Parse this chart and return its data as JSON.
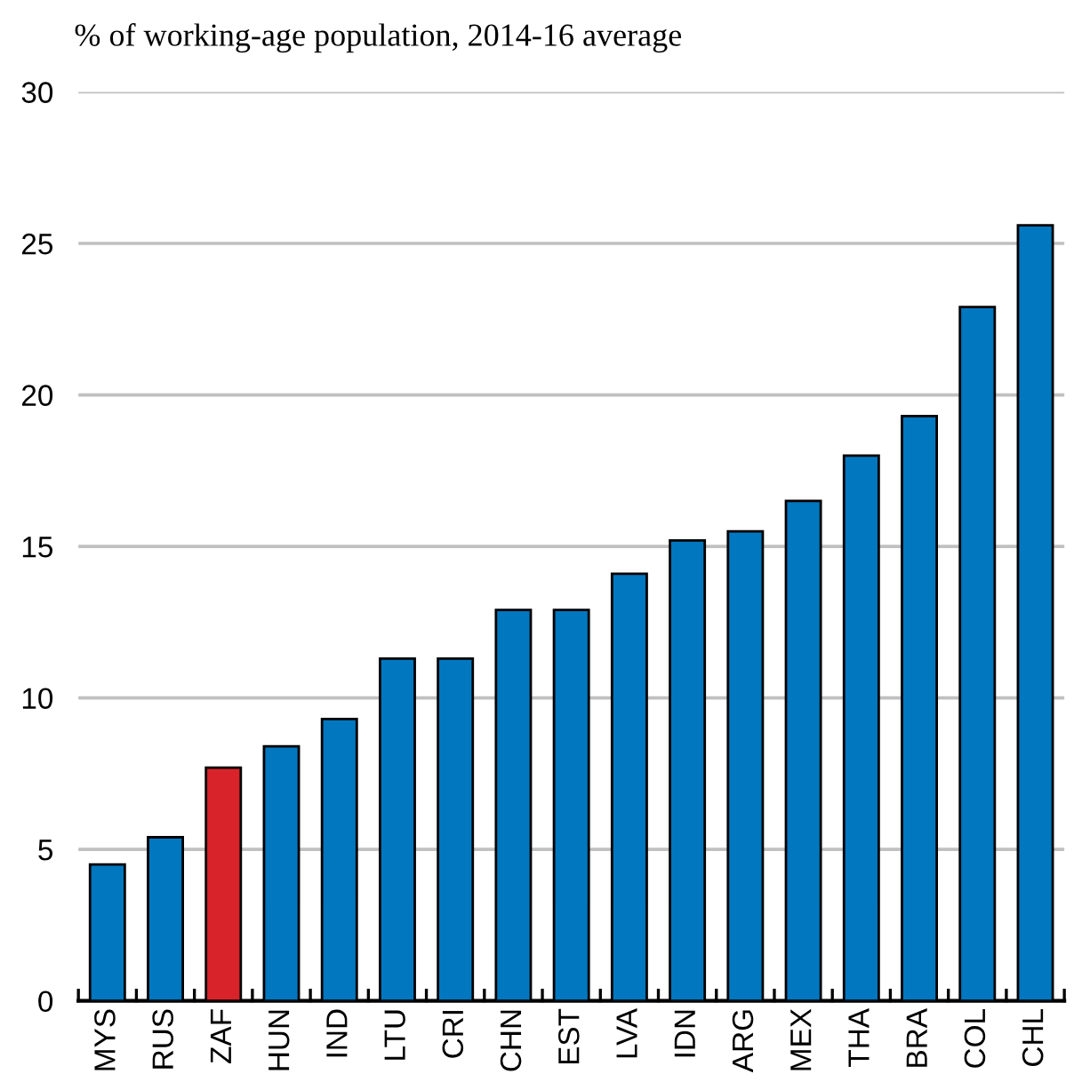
{
  "chart_data": {
    "type": "bar",
    "title": "% of working-age population, 2014-16 average",
    "categories": [
      "MYS",
      "RUS",
      "ZAF",
      "HUN",
      "IND",
      "LTU",
      "CRI",
      "CHN",
      "EST",
      "LVA",
      "IDN",
      "ARG",
      "MEX",
      "THA",
      "BRA",
      "COL",
      "CHL"
    ],
    "values": [
      4.5,
      5.4,
      7.7,
      8.4,
      9.3,
      11.3,
      11.3,
      12.9,
      12.9,
      14.1,
      15.2,
      15.5,
      16.5,
      18.0,
      19.3,
      22.9,
      25.6
    ],
    "colors": [
      "#0077bf",
      "#0077bf",
      "#d9232a",
      "#0077bf",
      "#0077bf",
      "#0077bf",
      "#0077bf",
      "#0077bf",
      "#0077bf",
      "#0077bf",
      "#0077bf",
      "#0077bf",
      "#0077bf",
      "#0077bf",
      "#0077bf",
      "#0077bf",
      "#0077bf"
    ],
    "ylim": [
      0,
      30
    ],
    "yticks": [
      0,
      5,
      10,
      15,
      20,
      25,
      30
    ],
    "grid": "y"
  }
}
